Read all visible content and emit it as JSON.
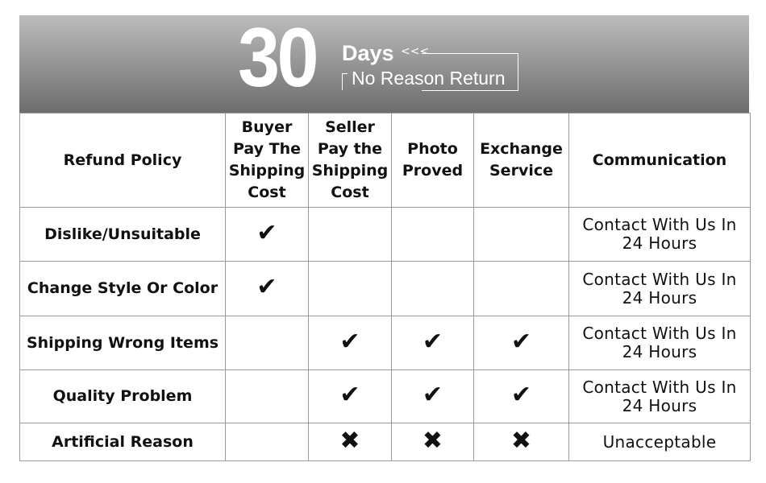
{
  "banner": {
    "number": "30",
    "days": "Days",
    "arrows": "<<<",
    "subtitle": "No Reason Return"
  },
  "headers": [
    "Refund Policy",
    "Buyer Pay The Shipping Cost",
    "Seller Pay the Shipping Cost",
    "Photo Proved",
    "Exchange Service",
    "Communication"
  ],
  "rows": [
    {
      "label": "Dislike/Unsuitable",
      "marks": [
        "check",
        "",
        "",
        ""
      ],
      "communication": "Contact With Us In 24 Hours"
    },
    {
      "label": "Change Style Or Color",
      "marks": [
        "check",
        "",
        "",
        ""
      ],
      "communication": "Contact With Us In 24 Hours"
    },
    {
      "label": "Shipping Wrong Items",
      "marks": [
        "",
        "check",
        "check",
        "check"
      ],
      "communication": "Contact With Us In 24 Hours"
    },
    {
      "label": "Quality Problem",
      "marks": [
        "",
        "check",
        "check",
        "check"
      ],
      "communication": "Contact With Us In 24 Hours"
    },
    {
      "label": "Artificial Reason",
      "marks": [
        "",
        "cross",
        "cross",
        "cross"
      ],
      "communication": "Unacceptable"
    }
  ]
}
